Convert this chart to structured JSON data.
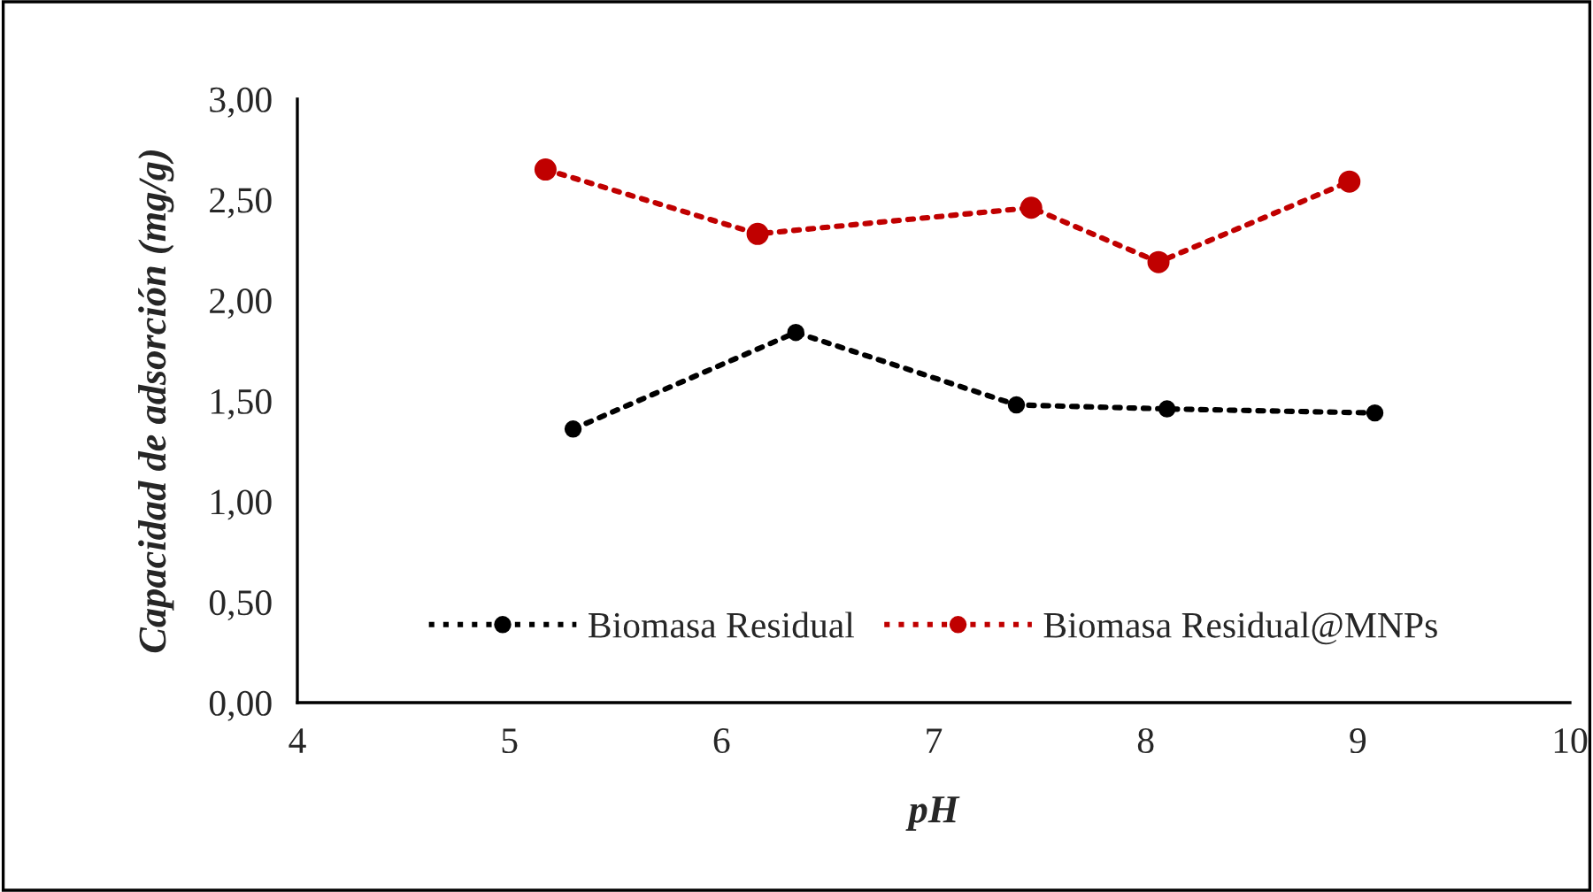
{
  "chart_data": {
    "type": "line",
    "xlabel": "pH",
    "ylabel": "Capacidad de adsorción (mg/g)",
    "xlim": [
      4,
      10
    ],
    "xticks": [
      4,
      5,
      6,
      7,
      8,
      9,
      10
    ],
    "ylim": [
      0,
      3
    ],
    "yticks": [
      {
        "value": 0,
        "label": "0,00"
      },
      {
        "value": 0.5,
        "label": "0,50"
      },
      {
        "value": 1,
        "label": "1,00"
      },
      {
        "value": 1.5,
        "label": "1,50"
      },
      {
        "value": 2,
        "label": "2,00"
      },
      {
        "value": 2.5,
        "label": "2,50"
      },
      {
        "value": 3,
        "label": "3,00"
      }
    ],
    "grid": false,
    "legend": "bottom",
    "marker": "circle",
    "line_style": "dotted",
    "series": [
      {
        "name": "Biomasa Residual",
        "color": "#000000",
        "x": [
          5.3,
          6.35,
          7.39,
          8.1,
          9.08
        ],
        "values": [
          1.36,
          1.84,
          1.48,
          1.46,
          1.44
        ]
      },
      {
        "name": "Biomasa Residual@MNPs",
        "color": "#c00000",
        "x": [
          5.17,
          6.17,
          7.46,
          8.06,
          8.96
        ],
        "values": [
          2.65,
          2.33,
          2.46,
          2.19,
          2.59
        ]
      }
    ]
  }
}
